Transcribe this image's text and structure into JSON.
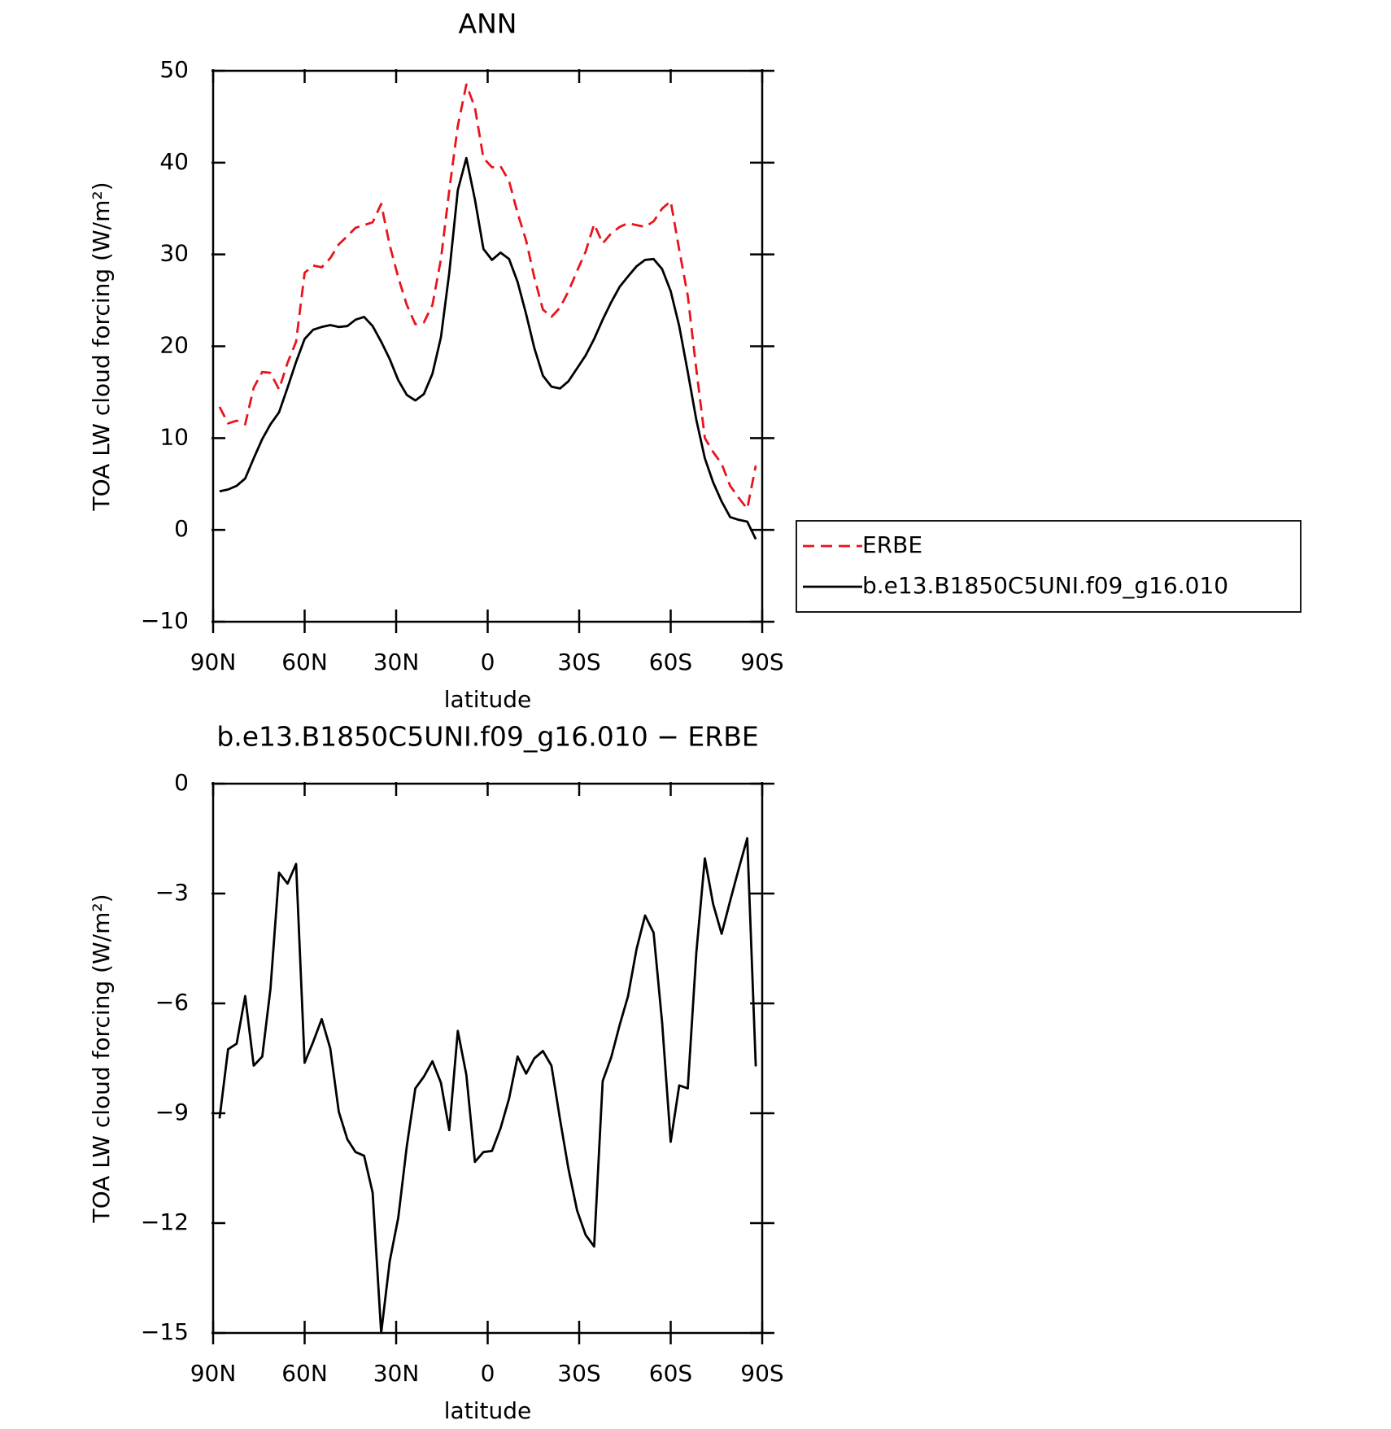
{
  "chart_data": [
    {
      "type": "line",
      "title": "ANN",
      "xlabel": "latitude",
      "ylabel": "TOA LW cloud forcing (W/m²)",
      "x": [
        87.9,
        85.1,
        82.3,
        79.5,
        76.7,
        73.9,
        71.2,
        68.4,
        65.6,
        62.8,
        60.0,
        57.2,
        54.4,
        51.6,
        48.8,
        46.0,
        43.3,
        40.5,
        37.7,
        34.9,
        32.1,
        29.3,
        26.5,
        23.7,
        20.9,
        18.1,
        15.3,
        12.6,
        9.8,
        7.0,
        4.2,
        1.4,
        -1.4,
        -4.2,
        -7.0,
        -9.8,
        -12.6,
        -15.3,
        -18.1,
        -20.9,
        -23.7,
        -26.5,
        -29.3,
        -32.1,
        -34.9,
        -37.7,
        -40.5,
        -43.3,
        -46.0,
        -48.8,
        -51.6,
        -54.4,
        -57.2,
        -60.0,
        -62.8,
        -65.6,
        -68.4,
        -71.2,
        -73.9,
        -76.7,
        -79.5,
        -82.3,
        -85.1,
        -87.9
      ],
      "series": [
        {
          "name": "ERBE",
          "color": "#e8141c",
          "style": "dashed",
          "values": [
            13.4,
            11.6,
            11.9,
            11.5,
            15.5,
            17.2,
            17.1,
            15.3,
            18.2,
            20.5,
            28.0,
            28.8,
            28.6,
            29.6,
            31.1,
            32.0,
            32.9,
            33.2,
            33.5,
            35.5,
            31.0,
            27.5,
            24.5,
            22.4,
            22.6,
            24.5,
            29.5,
            37.0,
            44.0,
            48.5,
            46.0,
            40.5,
            39.5,
            39.6,
            38.0,
            34.5,
            31.5,
            27.5,
            24.0,
            23.2,
            24.2,
            26.0,
            28.2,
            30.3,
            33.3,
            31.2,
            32.3,
            33.0,
            33.4,
            33.2,
            33.0,
            33.6,
            35.0,
            35.8,
            30.5,
            25.5,
            17.5,
            10.0,
            8.5,
            7.2,
            4.8,
            3.5,
            2.3,
            7.0
          ]
        },
        {
          "name": "b.e13.B1850C5UNI.f09_g16.010",
          "color": "#000000",
          "style": "solid",
          "values": [
            4.2,
            4.4,
            4.8,
            5.6,
            7.8,
            9.9,
            11.5,
            12.8,
            15.5,
            18.3,
            20.8,
            21.8,
            22.1,
            22.3,
            22.1,
            22.2,
            22.9,
            23.2,
            22.2,
            20.5,
            18.6,
            16.3,
            14.7,
            14.1,
            14.8,
            17.0,
            21.0,
            28.0,
            37.0,
            40.5,
            36.0,
            30.6,
            29.4,
            30.2,
            29.5,
            27.0,
            23.5,
            19.8,
            16.8,
            15.6,
            15.4,
            16.2,
            17.6,
            19.0,
            20.8,
            22.9,
            24.8,
            26.5,
            27.6,
            28.7,
            29.4,
            29.5,
            28.4,
            26.0,
            22.2,
            17.2,
            12.0,
            7.8,
            5.2,
            3.1,
            1.4,
            1.1,
            0.9,
            -1.0
          ]
        }
      ],
      "xlim": [
        90,
        -90
      ],
      "xticks": [
        {
          "value": 90,
          "label": "90N"
        },
        {
          "value": 60,
          "label": "60N"
        },
        {
          "value": 30,
          "label": "30N"
        },
        0,
        {
          "value": -30,
          "label": "30S"
        },
        {
          "value": -60,
          "label": "60S"
        },
        {
          "value": -90,
          "label": "90S"
        }
      ],
      "ylim": [
        -10,
        50
      ],
      "yticks": [
        {
          "value": -10,
          "label": "−10"
        },
        0,
        10,
        20,
        30,
        40,
        50
      ],
      "legend": "outside-right"
    },
    {
      "type": "line",
      "title": "b.e13.B1850C5UNI.f09_g16.010 − ERBE",
      "xlabel": "latitude",
      "ylabel": "TOA LW cloud forcing (W/m²)",
      "x": [
        87.9,
        85.1,
        82.3,
        79.5,
        76.7,
        73.9,
        71.2,
        68.4,
        65.6,
        62.8,
        60.0,
        57.2,
        54.4,
        51.6,
        48.8,
        46.0,
        43.3,
        40.5,
        37.7,
        34.9,
        32.1,
        29.3,
        26.5,
        23.7,
        20.9,
        18.1,
        15.3,
        12.6,
        9.8,
        7.0,
        4.2,
        1.4,
        -1.4,
        -4.2,
        -7.0,
        -9.8,
        -12.6,
        -15.3,
        -18.1,
        -20.9,
        -23.7,
        -26.5,
        -29.3,
        -32.1,
        -34.9,
        -37.7,
        -40.5,
        -43.3,
        -46.0,
        -48.8,
        -51.6,
        -54.4,
        -57.2,
        -60.0,
        -62.8,
        -65.6,
        -68.4,
        -71.2,
        -73.9,
        -76.7,
        -79.5,
        -82.3,
        -85.1,
        -87.9
      ],
      "series": [
        {
          "color": "#000000",
          "style": "solid",
          "values": [
            -9.14,
            -7.25,
            -7.1,
            -5.8,
            -7.7,
            -7.45,
            -5.6,
            -2.43,
            -2.73,
            -2.19,
            -7.62,
            -7.05,
            -6.43,
            -7.23,
            -8.96,
            -9.71,
            -10.06,
            -10.16,
            -11.17,
            -15,
            -13.04,
            -11.85,
            -9.9,
            -8.32,
            -8.0,
            -7.58,
            -8.17,
            -9.46,
            -6.75,
            -7.95,
            -10.33,
            -10.06,
            -10.03,
            -9.41,
            -8.6,
            -7.45,
            -7.92,
            -7.5,
            -7.3,
            -7.7,
            -9.16,
            -10.53,
            -11.65,
            -12.32,
            -12.64,
            -8.12,
            -7.47,
            -6.58,
            -5.81,
            -4.52,
            -3.6,
            -4.07,
            -6.53,
            -9.78,
            -8.24,
            -8.32,
            -4.62,
            -2.04,
            -3.28,
            -4.1,
            -3.2,
            -2.33,
            -1.49,
            -7.72
          ]
        }
      ],
      "xlim": [
        90,
        -90
      ],
      "xticks": [
        {
          "value": 90,
          "label": "90N"
        },
        {
          "value": 60,
          "label": "60N"
        },
        {
          "value": 30,
          "label": "30N"
        },
        0,
        {
          "value": -30,
          "label": "30S"
        },
        {
          "value": -60,
          "label": "60S"
        },
        {
          "value": -90,
          "label": "90S"
        }
      ],
      "ylim": [
        -15,
        0
      ],
      "yticks": [
        {
          "value": -15,
          "label": "−15"
        },
        {
          "value": -12,
          "label": "−12"
        },
        {
          "value": -9,
          "label": "−9"
        },
        {
          "value": -6,
          "label": "−6"
        },
        {
          "value": -3,
          "label": "−3"
        },
        0
      ]
    }
  ]
}
